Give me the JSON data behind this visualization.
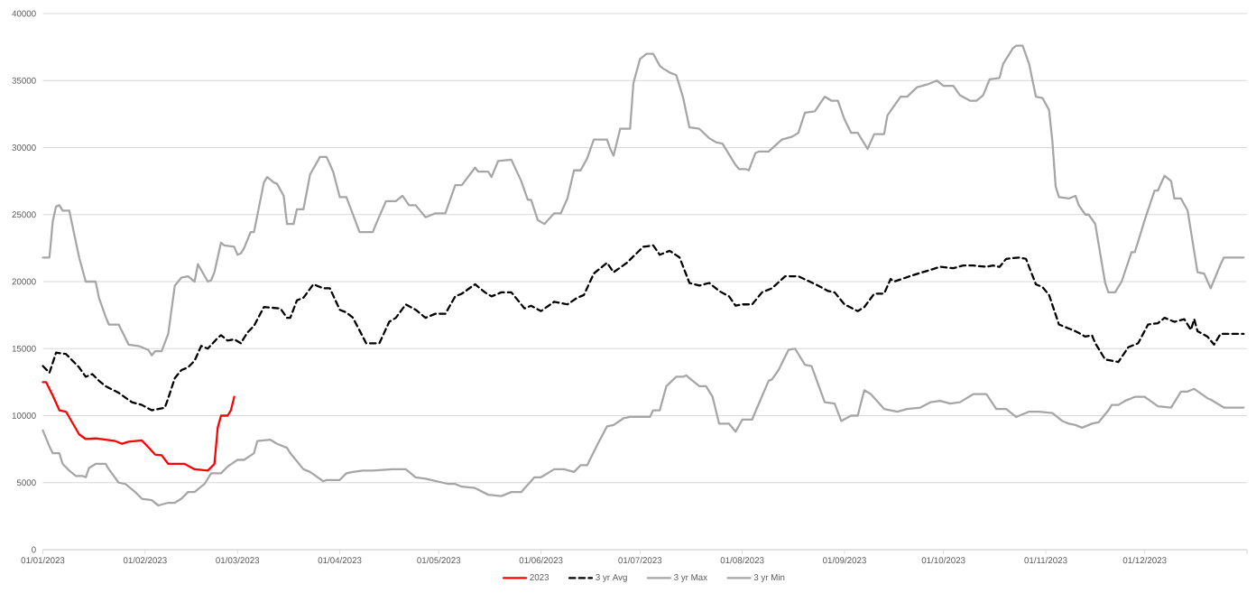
{
  "chart_data": {
    "type": "line",
    "xlim": [
      "2023-01-01",
      "2024-01-01"
    ],
    "ylim": [
      0,
      40000
    ],
    "yticks": [
      0,
      5000,
      10000,
      15000,
      20000,
      25000,
      30000,
      35000,
      40000
    ],
    "xticks": [
      {
        "value": "2023-01-01",
        "label": "01/01/2023"
      },
      {
        "value": "2023-02-01",
        "label": "01/02/2023"
      },
      {
        "value": "2023-03-01",
        "label": "01/03/2023"
      },
      {
        "value": "2023-04-01",
        "label": "01/04/2023"
      },
      {
        "value": "2023-05-01",
        "label": "01/05/2023"
      },
      {
        "value": "2023-06-01",
        "label": "01/06/2023"
      },
      {
        "value": "2023-07-01",
        "label": "01/07/2023"
      },
      {
        "value": "2023-08-01",
        "label": "01/08/2023"
      },
      {
        "value": "2023-09-01",
        "label": "01/09/2023"
      },
      {
        "value": "2023-10-01",
        "label": "01/10/2023"
      },
      {
        "value": "2023-11-01",
        "label": "01/11/2023"
      },
      {
        "value": "2023-12-01",
        "label": "01/12/2023"
      },
      {
        "value": "2024-01-01",
        "label": null
      }
    ],
    "grid": "y",
    "legend": "bottom",
    "series": [
      {
        "name": "2023",
        "color": "#ff0000",
        "line_style": "solid",
        "x": [
          "2023-01-01",
          "2023-01-02",
          "2023-01-04",
          "2023-01-06",
          "2023-01-08",
          "2023-01-12",
          "2023-01-14",
          "2023-01-17",
          "2023-01-20",
          "2023-01-23",
          "2023-01-25",
          "2023-01-27",
          "2023-01-31",
          "2023-02-01",
          "2023-02-04",
          "2023-02-06",
          "2023-02-08",
          "2023-02-13",
          "2023-02-16",
          "2023-02-20",
          "2023-02-22",
          "2023-02-23",
          "2023-02-24",
          "2023-02-26",
          "2023-02-27",
          "2023-02-28"
        ],
        "values": [
          12500,
          12500,
          11500,
          10400,
          10300,
          8600,
          8250,
          8300,
          8200,
          8100,
          7900,
          8050,
          8150,
          7900,
          7100,
          7050,
          6400,
          6400,
          6000,
          5900,
          6400,
          9100,
          10000,
          10000,
          10400,
          11400
        ]
      },
      {
        "name": "3 yr Avg",
        "color": "#000000",
        "line_style": "dashed",
        "x": [
          "2023-01-01",
          "2023-01-03",
          "2023-01-05",
          "2023-01-08",
          "2023-01-12",
          "2023-01-14",
          "2023-01-16",
          "2023-01-18",
          "2023-01-20",
          "2023-01-24",
          "2023-01-28",
          "2023-01-31",
          "2023-02-03",
          "2023-02-07",
          "2023-02-08",
          "2023-02-10",
          "2023-02-12",
          "2023-02-14",
          "2023-02-16",
          "2023-02-18",
          "2023-02-20",
          "2023-02-23",
          "2023-02-24",
          "2023-02-26",
          "2023-02-28",
          "2023-03-02",
          "2023-03-04",
          "2023-03-06",
          "2023-03-09",
          "2023-03-14",
          "2023-03-16",
          "2023-03-17",
          "2023-03-19",
          "2023-03-21",
          "2023-03-24",
          "2023-03-27",
          "2023-03-29",
          "2023-04-01",
          "2023-04-03",
          "2023-04-05",
          "2023-04-09",
          "2023-04-13",
          "2023-04-16",
          "2023-04-18",
          "2023-04-21",
          "2023-04-24",
          "2023-04-27",
          "2023-04-30",
          "2023-05-03",
          "2023-05-06",
          "2023-05-08",
          "2023-05-12",
          "2023-05-15",
          "2023-05-17",
          "2023-05-20",
          "2023-05-23",
          "2023-05-27",
          "2023-05-29",
          "2023-06-01",
          "2023-06-05",
          "2023-06-09",
          "2023-06-12",
          "2023-06-14",
          "2023-06-17",
          "2023-06-21",
          "2023-06-23",
          "2023-06-27",
          "2023-07-02",
          "2023-07-05",
          "2023-07-07",
          "2023-07-10",
          "2023-07-13",
          "2023-07-16",
          "2023-07-19",
          "2023-07-22",
          "2023-07-25",
          "2023-07-28",
          "2023-07-30",
          "2023-08-01",
          "2023-08-04",
          "2023-08-07",
          "2023-08-10",
          "2023-08-14",
          "2023-08-18",
          "2023-08-24",
          "2023-08-27",
          "2023-08-29",
          "2023-09-01",
          "2023-09-05",
          "2023-09-07",
          "2023-09-10",
          "2023-09-13",
          "2023-09-15",
          "2023-09-16",
          "2023-09-22",
          "2023-09-30",
          "2023-10-04",
          "2023-10-07",
          "2023-10-10",
          "2023-10-14",
          "2023-10-16",
          "2023-10-18",
          "2023-10-20",
          "2023-10-24",
          "2023-10-26",
          "2023-10-29",
          "2023-10-31",
          "2023-11-02",
          "2023-11-05",
          "2023-11-08",
          "2023-11-10",
          "2023-11-13",
          "2023-11-15",
          "2023-11-16",
          "2023-11-19",
          "2023-11-21",
          "2023-11-23",
          "2023-11-26",
          "2023-11-29",
          "2023-12-02",
          "2023-12-05",
          "2023-12-07",
          "2023-12-10",
          "2023-12-13",
          "2023-12-15",
          "2023-12-16",
          "2023-12-17",
          "2023-12-20",
          "2023-12-22",
          "2023-12-24",
          "2023-12-31"
        ],
        "values": [
          13700,
          13200,
          14700,
          14600,
          13600,
          12900,
          13100,
          12600,
          12200,
          11700,
          11000,
          10800,
          10400,
          10600,
          11300,
          12800,
          13400,
          13600,
          14100,
          15200,
          15000,
          15800,
          16000,
          15600,
          15700,
          15400,
          16200,
          16700,
          18100,
          18000,
          17300,
          17300,
          18600,
          18800,
          19800,
          19500,
          19500,
          17900,
          17700,
          17300,
          15400,
          15400,
          17000,
          17300,
          18300,
          17900,
          17300,
          17600,
          17600,
          18900,
          19100,
          19800,
          19200,
          18900,
          19200,
          19200,
          18000,
          18200,
          17800,
          18500,
          18300,
          18800,
          19000,
          20600,
          21400,
          20700,
          21400,
          22600,
          22700,
          22000,
          22300,
          21800,
          19900,
          19700,
          19900,
          19300,
          18900,
          18200,
          18300,
          18300,
          19200,
          19500,
          20400,
          20400,
          19700,
          19300,
          19200,
          18300,
          17800,
          18100,
          19100,
          19100,
          20200,
          20000,
          20500,
          21100,
          21000,
          21200,
          21200,
          21100,
          21200,
          21100,
          21700,
          21800,
          21700,
          19800,
          19600,
          19000,
          16800,
          16500,
          16300,
          15900,
          16000,
          15400,
          14200,
          14100,
          14000,
          15100,
          15400,
          16800,
          16900,
          17300,
          17000,
          17200,
          16400,
          17200,
          16300,
          15900,
          15300,
          16100,
          16100
        ]
      },
      {
        "name": "3 yr Max",
        "color": "#a6a6a6",
        "line_style": "solid",
        "x": [
          "2023-01-01",
          "2023-01-03",
          "2023-01-04",
          "2023-01-05",
          "2023-01-06",
          "2023-01-07",
          "2023-01-09",
          "2023-01-12",
          "2023-01-14",
          "2023-01-17",
          "2023-01-18",
          "2023-01-20",
          "2023-01-21",
          "2023-01-24",
          "2023-01-25",
          "2023-01-27",
          "2023-01-30",
          "2023-02-02",
          "2023-02-03",
          "2023-02-04",
          "2023-02-06",
          "2023-02-08",
          "2023-02-10",
          "2023-02-12",
          "2023-02-14",
          "2023-02-16",
          "2023-02-17",
          "2023-02-20",
          "2023-02-21",
          "2023-02-22",
          "2023-02-24",
          "2023-02-25",
          "2023-02-28",
          "2023-03-01",
          "2023-03-02",
          "2023-03-03",
          "2023-03-05",
          "2023-03-06",
          "2023-03-09",
          "2023-03-10",
          "2023-03-12",
          "2023-03-13",
          "2023-03-15",
          "2023-03-16",
          "2023-03-18",
          "2023-03-19",
          "2023-03-21",
          "2023-03-23",
          "2023-03-26",
          "2023-03-28",
          "2023-03-30",
          "2023-04-01",
          "2023-04-03",
          "2023-04-07",
          "2023-04-11",
          "2023-04-12",
          "2023-04-15",
          "2023-04-18",
          "2023-04-20",
          "2023-04-22",
          "2023-04-24",
          "2023-04-27",
          "2023-04-30",
          "2023-05-03",
          "2023-05-06",
          "2023-05-08",
          "2023-05-12",
          "2023-05-13",
          "2023-05-16",
          "2023-05-17",
          "2023-05-19",
          "2023-05-23",
          "2023-05-26",
          "2023-05-28",
          "2023-05-29",
          "2023-05-31",
          "2023-06-02",
          "2023-06-05",
          "2023-06-07",
          "2023-06-09",
          "2023-06-11",
          "2023-06-13",
          "2023-06-15",
          "2023-06-17",
          "2023-06-21",
          "2023-06-22",
          "2023-06-23",
          "2023-06-25",
          "2023-06-28",
          "2023-06-29",
          "2023-07-01",
          "2023-07-03",
          "2023-07-05",
          "2023-07-07",
          "2023-07-08",
          "2023-07-10",
          "2023-07-12",
          "2023-07-14",
          "2023-07-16",
          "2023-07-19",
          "2023-07-22",
          "2023-07-24",
          "2023-07-26",
          "2023-07-30",
          "2023-07-31",
          "2023-08-02",
          "2023-08-03",
          "2023-08-05",
          "2023-08-06",
          "2023-08-09",
          "2023-08-13",
          "2023-08-16",
          "2023-08-18",
          "2023-08-20",
          "2023-08-23",
          "2023-08-26",
          "2023-08-28",
          "2023-08-30",
          "2023-09-01",
          "2023-09-03",
          "2023-09-05",
          "2023-09-08",
          "2023-09-10",
          "2023-09-13",
          "2023-09-14",
          "2023-09-18",
          "2023-09-20",
          "2023-09-23",
          "2023-09-26",
          "2023-09-29",
          "2023-10-01",
          "2023-10-04",
          "2023-10-06",
          "2023-10-09",
          "2023-10-11",
          "2023-10-13",
          "2023-10-15",
          "2023-10-18",
          "2023-10-19",
          "2023-10-22",
          "2023-10-23",
          "2023-10-25",
          "2023-10-27",
          "2023-10-29",
          "2023-10-31",
          "2023-11-02",
          "2023-11-03",
          "2023-11-04",
          "2023-11-05",
          "2023-11-08",
          "2023-11-10",
          "2023-11-11",
          "2023-11-13",
          "2023-11-14",
          "2023-11-16",
          "2023-11-19",
          "2023-11-20",
          "2023-11-22",
          "2023-11-24",
          "2023-11-27",
          "2023-11-28",
          "2023-12-01",
          "2023-12-04",
          "2023-12-05",
          "2023-12-07",
          "2023-12-09",
          "2023-12-10",
          "2023-12-12",
          "2023-12-14",
          "2023-12-17",
          "2023-12-19",
          "2023-12-21",
          "2023-12-24",
          "2023-12-25",
          "2023-12-31"
        ],
        "values": [
          21800,
          21800,
          24500,
          25600,
          25700,
          25300,
          25300,
          21800,
          20000,
          20000,
          18800,
          17400,
          16800,
          16800,
          16300,
          15300,
          15200,
          14900,
          14500,
          14800,
          14800,
          16100,
          19700,
          20300,
          20400,
          20000,
          21300,
          20000,
          20100,
          20700,
          22900,
          22700,
          22600,
          22000,
          22100,
          22500,
          23700,
          23700,
          27400,
          27800,
          27400,
          27300,
          26400,
          24300,
          24300,
          25400,
          25400,
          28000,
          29300,
          29300,
          28200,
          26300,
          26300,
          23700,
          23700,
          24300,
          26000,
          26000,
          26400,
          25700,
          25700,
          24800,
          25100,
          25100,
          27200,
          27200,
          28500,
          28200,
          28200,
          27800,
          29000,
          29100,
          27500,
          26100,
          26100,
          24600,
          24300,
          25100,
          25100,
          26200,
          28300,
          28300,
          29200,
          30600,
          30600,
          29900,
          29400,
          31400,
          31400,
          34800,
          36600,
          37000,
          37000,
          36100,
          35900,
          35600,
          35400,
          33800,
          31500,
          31400,
          30700,
          30400,
          30300,
          28700,
          28400,
          28400,
          28300,
          29600,
          29700,
          29700,
          30600,
          30800,
          31100,
          32600,
          32700,
          33800,
          33500,
          33500,
          32100,
          31100,
          31100,
          29900,
          31000,
          31000,
          32400,
          33800,
          33800,
          34500,
          34700,
          35000,
          34600,
          34600,
          33900,
          33500,
          33500,
          33900,
          35100,
          35200,
          36200,
          37400,
          37600,
          37600,
          36200,
          33800,
          33700,
          32800,
          30500,
          27100,
          26300,
          26200,
          26400,
          25700,
          25000,
          25000,
          24300,
          19900,
          19200,
          19200,
          20000,
          22200,
          22200,
          24600,
          26800,
          26800,
          27900,
          27500,
          26200,
          26200,
          25300,
          20700,
          20600,
          19500,
          21300,
          21800,
          21800
        ]
      },
      {
        "name": "3 yr Min",
        "color": "#a6a6a6",
        "line_style": "solid",
        "x": [
          "2023-01-01",
          "2023-01-03",
          "2023-01-04",
          "2023-01-06",
          "2023-01-07",
          "2023-01-09",
          "2023-01-11",
          "2023-01-13",
          "2023-01-14",
          "2023-01-15",
          "2023-01-17",
          "2023-01-20",
          "2023-01-21",
          "2023-01-24",
          "2023-01-26",
          "2023-01-29",
          "2023-01-31",
          "2023-02-03",
          "2023-02-05",
          "2023-02-08",
          "2023-02-10",
          "2023-02-12",
          "2023-02-14",
          "2023-02-16",
          "2023-02-19",
          "2023-02-21",
          "2023-02-24",
          "2023-02-26",
          "2023-03-01",
          "2023-03-03",
          "2023-03-06",
          "2023-03-07",
          "2023-03-11",
          "2023-03-13",
          "2023-03-16",
          "2023-03-17",
          "2023-03-21",
          "2023-03-23",
          "2023-03-27",
          "2023-03-28",
          "2023-04-01",
          "2023-04-03",
          "2023-04-05",
          "2023-04-08",
          "2023-04-11",
          "2023-04-17",
          "2023-04-21",
          "2023-04-24",
          "2023-04-27",
          "2023-05-04",
          "2023-05-06",
          "2023-05-08",
          "2023-05-12",
          "2023-05-16",
          "2023-05-20",
          "2023-05-23",
          "2023-05-26",
          "2023-05-30",
          "2023-06-01",
          "2023-06-05",
          "2023-06-08",
          "2023-06-11",
          "2023-06-13",
          "2023-06-15",
          "2023-06-18",
          "2023-06-21",
          "2023-06-23",
          "2023-06-26",
          "2023-06-28",
          "2023-07-04",
          "2023-07-05",
          "2023-07-07",
          "2023-07-09",
          "2023-07-12",
          "2023-07-14",
          "2023-07-15",
          "2023-07-19",
          "2023-07-21",
          "2023-07-23",
          "2023-07-25",
          "2023-07-28",
          "2023-07-30",
          "2023-08-01",
          "2023-08-04",
          "2023-08-05",
          "2023-08-09",
          "2023-08-10",
          "2023-08-12",
          "2023-08-15",
          "2023-08-17",
          "2023-08-20",
          "2023-08-22",
          "2023-08-26",
          "2023-08-29",
          "2023-08-31",
          "2023-09-03",
          "2023-09-05",
          "2023-09-07",
          "2023-09-09",
          "2023-09-13",
          "2023-09-15",
          "2023-09-17",
          "2023-09-20",
          "2023-09-24",
          "2023-09-27",
          "2023-09-30",
          "2023-10-03",
          "2023-10-06",
          "2023-10-10",
          "2023-10-14",
          "2023-10-17",
          "2023-10-20",
          "2023-10-23",
          "2023-10-25",
          "2023-10-27",
          "2023-10-30",
          "2023-11-03",
          "2023-11-06",
          "2023-11-08",
          "2023-11-10",
          "2023-11-12",
          "2023-11-15",
          "2023-11-17",
          "2023-11-20",
          "2023-11-21",
          "2023-11-23",
          "2023-11-25",
          "2023-11-28",
          "2023-12-01",
          "2023-12-05",
          "2023-12-09",
          "2023-12-12",
          "2023-12-14",
          "2023-12-16",
          "2023-12-20",
          "2023-12-21",
          "2023-12-25",
          "2023-12-31"
        ],
        "values": [
          8900,
          7700,
          7200,
          7200,
          6400,
          5900,
          5500,
          5500,
          5400,
          6100,
          6400,
          6400,
          6000,
          5000,
          4900,
          4300,
          3800,
          3700,
          3300,
          3500,
          3500,
          3800,
          4300,
          4300,
          4900,
          5700,
          5700,
          6200,
          6700,
          6700,
          7200,
          8100,
          8200,
          7900,
          7600,
          7200,
          6000,
          5800,
          5100,
          5200,
          5200,
          5700,
          5800,
          5900,
          5900,
          6000,
          6000,
          5400,
          5300,
          4900,
          4900,
          4700,
          4600,
          4100,
          4000,
          4300,
          4300,
          5400,
          5400,
          6000,
          6000,
          5800,
          6300,
          6300,
          7800,
          9200,
          9300,
          9800,
          9900,
          9900,
          10400,
          10400,
          12200,
          12900,
          12900,
          13000,
          12200,
          12200,
          11400,
          9400,
          9400,
          8800,
          9700,
          9700,
          10300,
          12600,
          12700,
          13400,
          14900,
          15000,
          13800,
          13700,
          11000,
          10900,
          9600,
          10000,
          10000,
          11900,
          11600,
          10500,
          10400,
          10300,
          10500,
          10600,
          11000,
          11100,
          10900,
          11000,
          11600,
          11600,
          10500,
          10500,
          9900,
          10100,
          10300,
          10300,
          10200,
          9600,
          9400,
          9300,
          9100,
          9400,
          9500,
          10400,
          10800,
          10800,
          11100,
          11400,
          11400,
          10700,
          10600,
          11800,
          11800,
          12000,
          11300,
          11200,
          10600,
          10600
        ]
      }
    ]
  }
}
